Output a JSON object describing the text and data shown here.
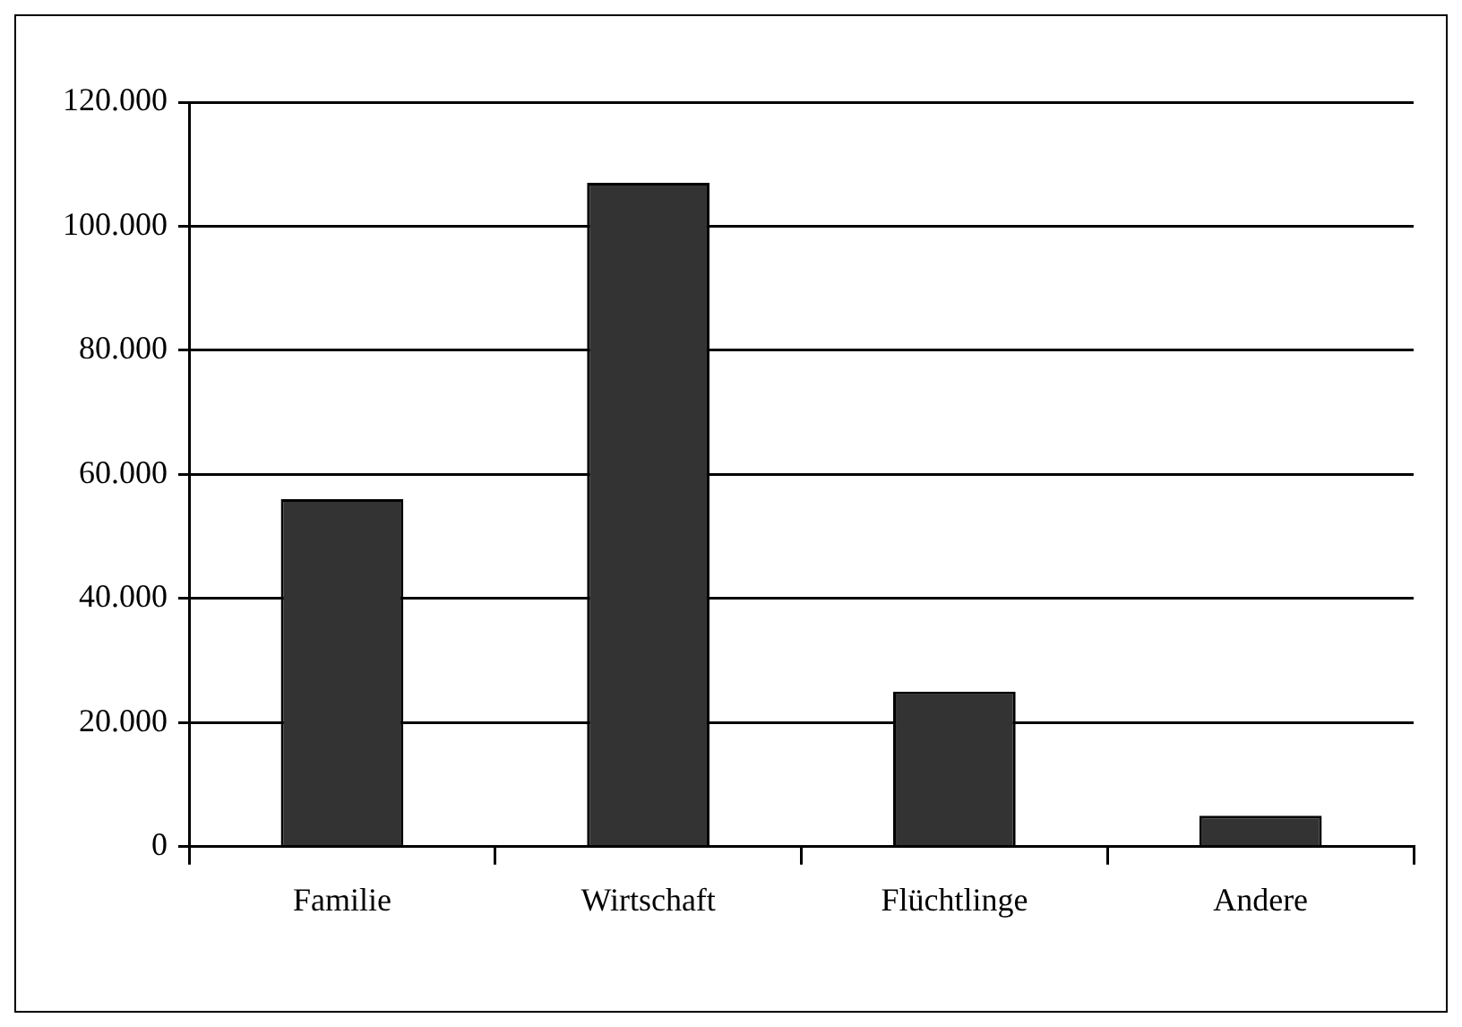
{
  "chart_data": {
    "type": "bar",
    "categories": [
      "Familie",
      "Wirtschaft",
      "Flüchtlinge",
      "Andere"
    ],
    "values": [
      56000,
      107000,
      25000,
      5000
    ],
    "color": "#333333",
    "ylim": [
      0,
      120000
    ],
    "yticks": [
      {
        "value": 0,
        "label": "0"
      },
      {
        "value": 20000,
        "label": "20.000"
      },
      {
        "value": 40000,
        "label": "40.000"
      },
      {
        "value": 60000,
        "label": "60.000"
      },
      {
        "value": 80000,
        "label": "80.000"
      },
      {
        "value": 100000,
        "label": "100.000"
      },
      {
        "value": 120000,
        "label": "120.000"
      }
    ],
    "grid": "y",
    "legend": false
  }
}
